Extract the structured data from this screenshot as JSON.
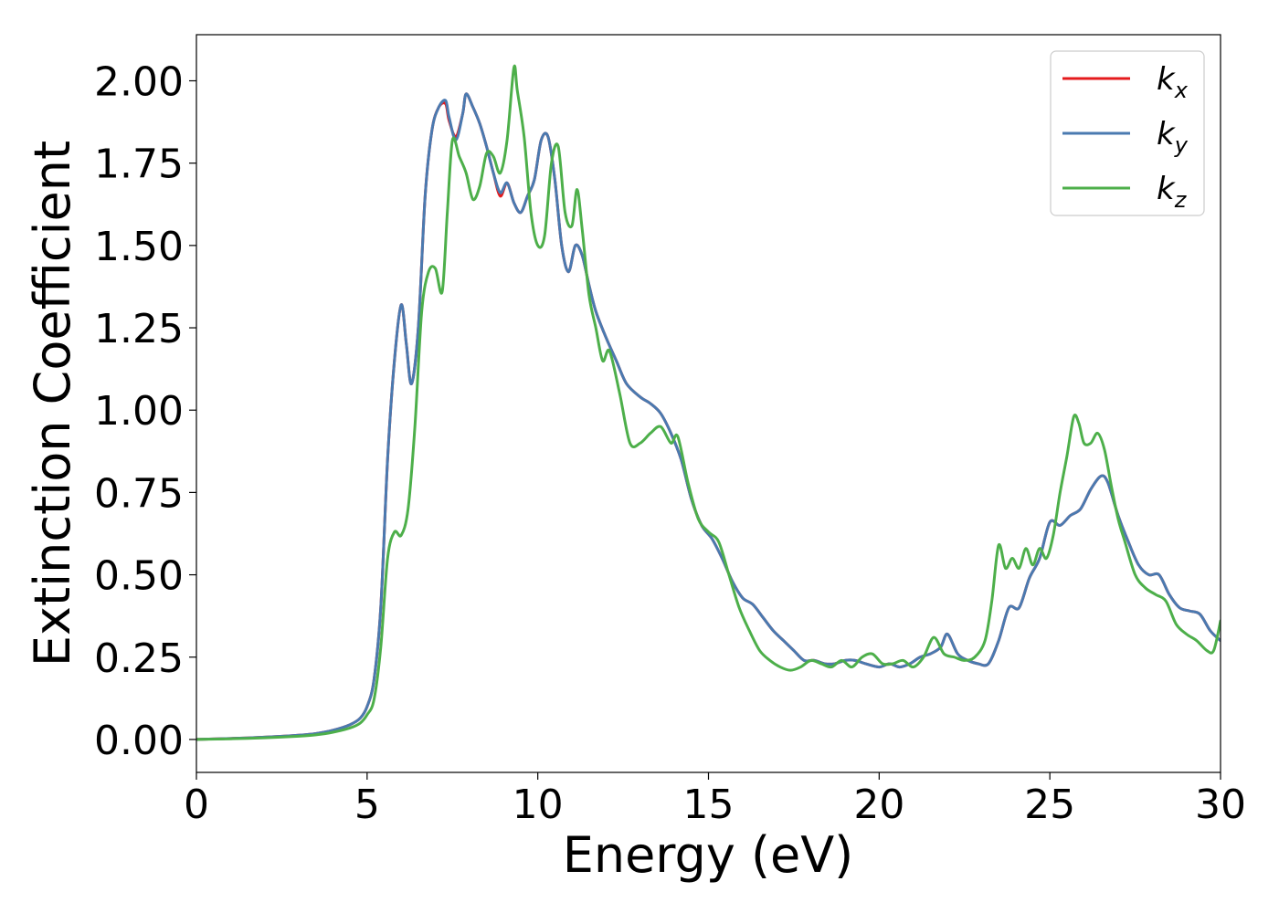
{
  "chart_data": {
    "type": "line",
    "title": "",
    "xlabel": "Energy (eV)",
    "ylabel": "Extinction Coefficient",
    "xlim": [
      0,
      30
    ],
    "ylim": [
      -0.1,
      2.14
    ],
    "xticks": [
      0,
      5,
      10,
      15,
      20,
      25,
      30
    ],
    "xtick_labels": [
      "0",
      "5",
      "10",
      "15",
      "20",
      "25",
      "30"
    ],
    "yticks": [
      0,
      0.25,
      0.5,
      0.75,
      1.0,
      1.25,
      1.5,
      1.75,
      2.0
    ],
    "ytick_labels": [
      "0.00",
      "0.25",
      "0.50",
      "0.75",
      "1.00",
      "1.25",
      "1.50",
      "1.75",
      "2.00"
    ],
    "grid": false,
    "legend_position": "top-right",
    "series": [
      {
        "name": "k",
        "sub": "x",
        "color": "#e41a1c",
        "x": [
          0,
          1,
          2,
          3,
          3.5,
          4,
          4.5,
          4.8,
          5.0,
          5.2,
          5.4,
          5.6,
          5.8,
          6.0,
          6.15,
          6.3,
          6.5,
          6.7,
          6.9,
          7.1,
          7.3,
          7.4,
          7.6,
          7.8,
          7.9,
          8.1,
          8.3,
          8.5,
          8.7,
          8.9,
          9.1,
          9.3,
          9.5,
          9.7,
          9.9,
          10.1,
          10.3,
          10.5,
          10.7,
          10.9,
          11.1,
          11.3,
          11.5,
          11.7,
          12.0,
          12.3,
          12.6,
          13.0,
          13.3,
          13.6,
          13.9,
          14.2,
          14.5,
          14.8,
          15.1,
          15.4,
          15.7,
          16.0,
          16.3,
          16.6,
          16.9,
          17.2,
          17.5,
          17.8,
          18.1,
          18.4,
          18.7,
          19.0,
          19.3,
          19.6,
          20.0,
          20.3,
          20.6,
          20.9,
          21.2,
          21.5,
          21.8,
          22.0,
          22.3,
          22.6,
          22.9,
          23.2,
          23.5,
          23.8,
          24.1,
          24.4,
          24.7,
          25.0,
          25.3,
          25.6,
          25.9,
          26.2,
          26.5,
          26.7,
          27.0,
          27.3,
          27.6,
          27.9,
          28.2,
          28.5,
          28.8,
          29.1,
          29.4,
          29.7,
          30.0
        ],
        "y": [
          0.0,
          0.003,
          0.007,
          0.013,
          0.018,
          0.028,
          0.045,
          0.065,
          0.1,
          0.18,
          0.4,
          0.85,
          1.15,
          1.32,
          1.2,
          1.08,
          1.25,
          1.65,
          1.85,
          1.92,
          1.93,
          1.88,
          1.83,
          1.9,
          1.96,
          1.92,
          1.87,
          1.8,
          1.72,
          1.65,
          1.69,
          1.63,
          1.6,
          1.65,
          1.7,
          1.82,
          1.83,
          1.7,
          1.5,
          1.42,
          1.5,
          1.47,
          1.38,
          1.3,
          1.22,
          1.15,
          1.08,
          1.04,
          1.02,
          0.99,
          0.93,
          0.85,
          0.73,
          0.65,
          0.61,
          0.55,
          0.48,
          0.43,
          0.41,
          0.37,
          0.33,
          0.3,
          0.27,
          0.24,
          0.24,
          0.23,
          0.23,
          0.24,
          0.24,
          0.23,
          0.22,
          0.23,
          0.22,
          0.23,
          0.25,
          0.26,
          0.28,
          0.32,
          0.26,
          0.24,
          0.23,
          0.23,
          0.3,
          0.4,
          0.4,
          0.49,
          0.55,
          0.66,
          0.65,
          0.68,
          0.7,
          0.76,
          0.8,
          0.78,
          0.68,
          0.6,
          0.53,
          0.5,
          0.5,
          0.44,
          0.4,
          0.39,
          0.38,
          0.33,
          0.3
        ]
      },
      {
        "name": "k",
        "sub": "y",
        "color": "#4a7ab0",
        "x": [
          0,
          1,
          2,
          3,
          3.5,
          4,
          4.5,
          4.8,
          5.0,
          5.2,
          5.4,
          5.6,
          5.8,
          6.0,
          6.15,
          6.3,
          6.5,
          6.7,
          6.9,
          7.1,
          7.3,
          7.4,
          7.6,
          7.8,
          7.9,
          8.1,
          8.3,
          8.5,
          8.7,
          8.9,
          9.1,
          9.3,
          9.5,
          9.7,
          9.9,
          10.1,
          10.3,
          10.5,
          10.7,
          10.9,
          11.1,
          11.3,
          11.5,
          11.7,
          12.0,
          12.3,
          12.6,
          13.0,
          13.3,
          13.6,
          13.9,
          14.2,
          14.5,
          14.8,
          15.1,
          15.4,
          15.7,
          16.0,
          16.3,
          16.6,
          16.9,
          17.2,
          17.5,
          17.8,
          18.1,
          18.4,
          18.7,
          19.0,
          19.3,
          19.6,
          20.0,
          20.3,
          20.6,
          20.9,
          21.2,
          21.5,
          21.8,
          22.0,
          22.3,
          22.6,
          22.9,
          23.2,
          23.5,
          23.8,
          24.1,
          24.4,
          24.7,
          25.0,
          25.3,
          25.6,
          25.9,
          26.2,
          26.5,
          26.7,
          27.0,
          27.3,
          27.6,
          27.9,
          28.2,
          28.5,
          28.8,
          29.1,
          29.4,
          29.7,
          30.0
        ],
        "y": [
          0.0,
          0.003,
          0.007,
          0.013,
          0.018,
          0.028,
          0.045,
          0.065,
          0.1,
          0.18,
          0.4,
          0.85,
          1.15,
          1.32,
          1.2,
          1.08,
          1.25,
          1.65,
          1.85,
          1.92,
          1.94,
          1.89,
          1.82,
          1.9,
          1.96,
          1.92,
          1.87,
          1.8,
          1.72,
          1.66,
          1.69,
          1.63,
          1.6,
          1.65,
          1.7,
          1.82,
          1.83,
          1.7,
          1.5,
          1.42,
          1.5,
          1.47,
          1.38,
          1.3,
          1.22,
          1.15,
          1.08,
          1.04,
          1.02,
          0.99,
          0.93,
          0.85,
          0.73,
          0.65,
          0.61,
          0.55,
          0.48,
          0.43,
          0.41,
          0.37,
          0.33,
          0.3,
          0.27,
          0.24,
          0.24,
          0.23,
          0.23,
          0.24,
          0.24,
          0.23,
          0.22,
          0.23,
          0.22,
          0.23,
          0.25,
          0.26,
          0.28,
          0.32,
          0.26,
          0.24,
          0.23,
          0.23,
          0.3,
          0.4,
          0.4,
          0.49,
          0.55,
          0.66,
          0.65,
          0.68,
          0.7,
          0.76,
          0.8,
          0.78,
          0.68,
          0.6,
          0.53,
          0.5,
          0.5,
          0.44,
          0.4,
          0.39,
          0.38,
          0.33,
          0.3
        ]
      },
      {
        "name": "k",
        "sub": "z",
        "color": "#4daf4a",
        "x": [
          0,
          1,
          2,
          3,
          3.5,
          4,
          4.5,
          4.8,
          5.0,
          5.2,
          5.4,
          5.6,
          5.8,
          6.0,
          6.2,
          6.4,
          6.6,
          6.8,
          7.0,
          7.2,
          7.35,
          7.5,
          7.7,
          7.9,
          8.1,
          8.3,
          8.5,
          8.7,
          8.9,
          9.1,
          9.3,
          9.4,
          9.6,
          9.8,
          10.0,
          10.2,
          10.4,
          10.6,
          10.8,
          11.0,
          11.15,
          11.3,
          11.5,
          11.7,
          11.9,
          12.1,
          12.4,
          12.7,
          13.0,
          13.3,
          13.6,
          13.9,
          14.1,
          14.4,
          14.7,
          15.0,
          15.3,
          15.6,
          15.9,
          16.2,
          16.5,
          16.8,
          17.1,
          17.4,
          17.7,
          18.0,
          18.3,
          18.6,
          18.9,
          19.2,
          19.5,
          19.8,
          20.1,
          20.4,
          20.7,
          21.0,
          21.3,
          21.6,
          21.9,
          22.2,
          22.5,
          22.8,
          23.1,
          23.3,
          23.5,
          23.7,
          23.9,
          24.1,
          24.3,
          24.5,
          24.7,
          24.9,
          25.1,
          25.3,
          25.5,
          25.7,
          25.85,
          26.0,
          26.2,
          26.4,
          26.6,
          26.8,
          27.0,
          27.2,
          27.5,
          27.8,
          28.1,
          28.4,
          28.7,
          29.0,
          29.3,
          29.6,
          29.8,
          30.0
        ],
        "y": [
          0.0,
          0.002,
          0.005,
          0.01,
          0.014,
          0.022,
          0.035,
          0.05,
          0.075,
          0.12,
          0.28,
          0.55,
          0.63,
          0.62,
          0.7,
          0.95,
          1.3,
          1.42,
          1.43,
          1.36,
          1.6,
          1.82,
          1.77,
          1.72,
          1.64,
          1.68,
          1.78,
          1.77,
          1.72,
          1.82,
          2.04,
          1.97,
          1.83,
          1.6,
          1.5,
          1.53,
          1.75,
          1.8,
          1.6,
          1.56,
          1.67,
          1.55,
          1.35,
          1.25,
          1.15,
          1.18,
          1.05,
          0.9,
          0.9,
          0.93,
          0.95,
          0.9,
          0.92,
          0.78,
          0.67,
          0.63,
          0.6,
          0.5,
          0.4,
          0.33,
          0.27,
          0.24,
          0.22,
          0.21,
          0.22,
          0.24,
          0.23,
          0.22,
          0.24,
          0.22,
          0.25,
          0.26,
          0.23,
          0.23,
          0.24,
          0.22,
          0.25,
          0.31,
          0.26,
          0.25,
          0.24,
          0.25,
          0.3,
          0.42,
          0.59,
          0.52,
          0.55,
          0.52,
          0.58,
          0.53,
          0.58,
          0.55,
          0.62,
          0.75,
          0.86,
          0.98,
          0.96,
          0.9,
          0.9,
          0.93,
          0.88,
          0.77,
          0.67,
          0.6,
          0.5,
          0.46,
          0.44,
          0.42,
          0.35,
          0.32,
          0.3,
          0.27,
          0.27,
          0.36
        ]
      }
    ]
  }
}
